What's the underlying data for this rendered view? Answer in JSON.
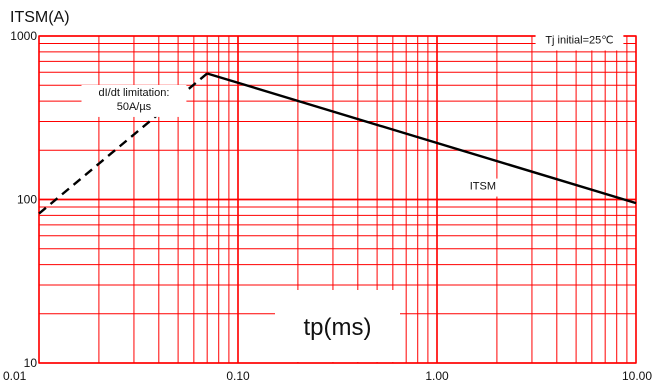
{
  "chart_data": {
    "type": "line",
    "title": "",
    "xlabel": "tp(ms)",
    "ylabel": "ITSM(A)",
    "x_scale": "log",
    "y_scale": "log",
    "xlim": [
      0.01,
      10
    ],
    "ylim": [
      10,
      1000
    ],
    "grid": true,
    "x_ticks": [
      {
        "value": 0.01,
        "label": "0.01"
      },
      {
        "value": 0.1,
        "label": "0.10"
      },
      {
        "value": 1,
        "label": "1.00"
      },
      {
        "value": 10,
        "label": "10.00"
      }
    ],
    "y_ticks": [
      {
        "value": 10,
        "label": "10"
      },
      {
        "value": 100,
        "label": "100"
      },
      {
        "value": 1000,
        "label": "1000"
      }
    ],
    "series": [
      {
        "name": "",
        "line_style": "dashed",
        "points": [
          {
            "x": 0.01,
            "y": 82
          },
          {
            "x": 0.07,
            "y": 590
          }
        ]
      },
      {
        "name": "ITSM",
        "line_style": "solid",
        "points": [
          {
            "x": 0.07,
            "y": 590
          },
          {
            "x": 10,
            "y": 95
          }
        ]
      }
    ],
    "annotations": [
      {
        "id": "didt",
        "lines": [
          "dI/dt limitation:",
          "50A/µs"
        ],
        "x": 0.03,
        "y": 430
      },
      {
        "id": "tj",
        "lines": [
          "Tj initial=25℃"
        ],
        "x": 5.2,
        "y": 900
      },
      {
        "id": "itsm",
        "lines": [
          "ITSM"
        ],
        "x": 1.7,
        "y": 115
      }
    ],
    "colors": {
      "grid": "#ff0000",
      "line": "#000000",
      "background": "#ffffff"
    }
  }
}
